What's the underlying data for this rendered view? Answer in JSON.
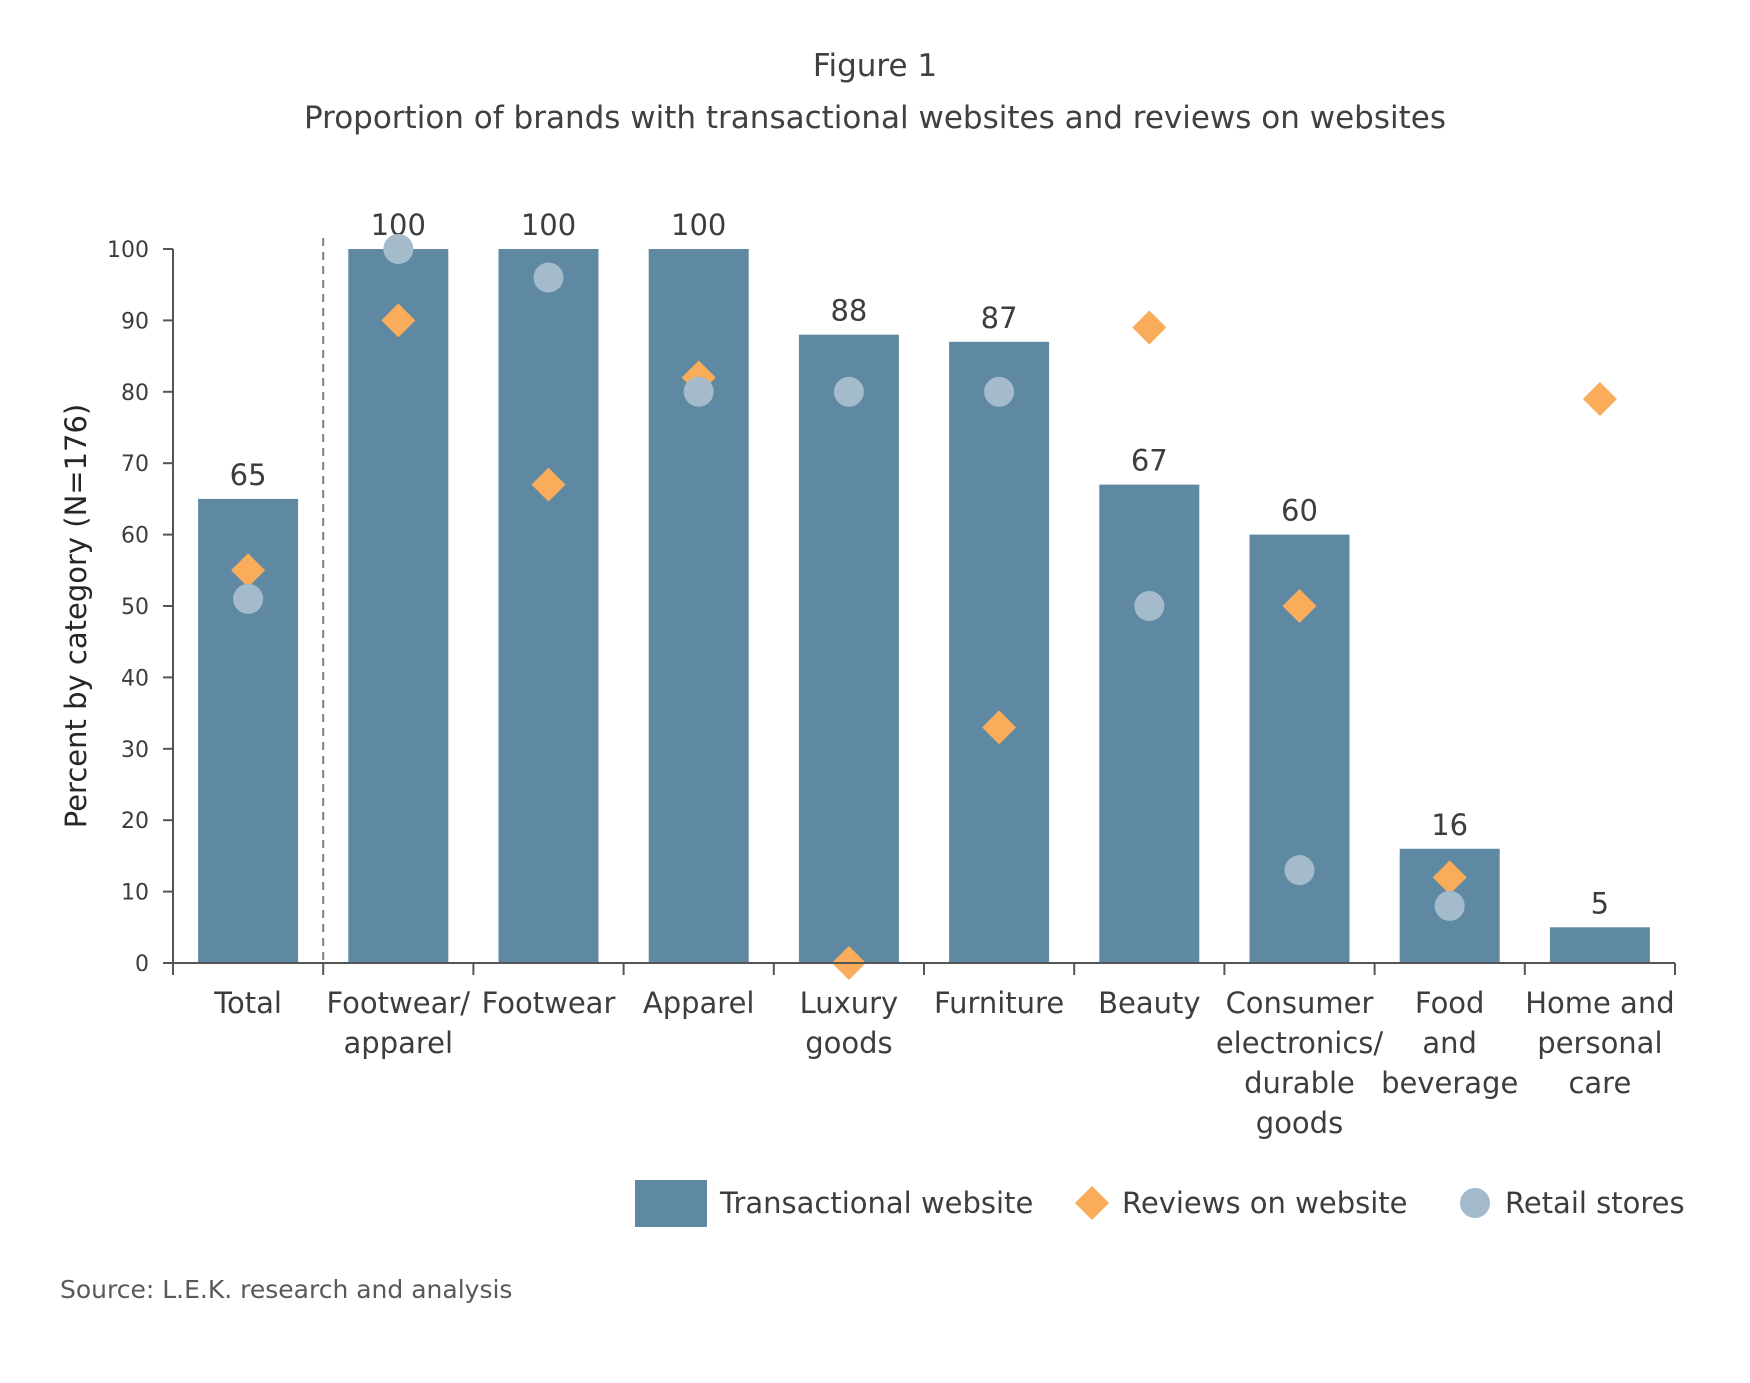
{
  "figure_label": "Figure 1",
  "title": "Proportion of brands with transactional websites and reviews on websites",
  "source": "Source: L.E.K. research and analysis",
  "colors": {
    "bar": "#5f89a3",
    "reviews": "#f9ac59",
    "retail": "#a4bbcb",
    "axis": "#555555",
    "divider": "#7f7f7f"
  },
  "chart_data": {
    "type": "bar",
    "ylabel": "Percent by category (N=176)",
    "ylim": [
      0,
      100
    ],
    "yticks": [
      0,
      10,
      20,
      30,
      40,
      50,
      60,
      70,
      80,
      90,
      100
    ],
    "divider_after_index": 0,
    "categories": [
      [
        "Total"
      ],
      [
        "Footwear/",
        "apparel"
      ],
      [
        "Footwear"
      ],
      [
        "Apparel"
      ],
      [
        "Luxury",
        "goods"
      ],
      [
        "Furniture"
      ],
      [
        "Beauty"
      ],
      [
        "Consumer",
        "electronics/",
        "durable",
        "goods"
      ],
      [
        "Food",
        "and",
        "beverage"
      ],
      [
        "Home and",
        "personal",
        "care"
      ]
    ],
    "series": [
      {
        "name": "Transactional website",
        "kind": "bar",
        "values": [
          65,
          100,
          100,
          100,
          88,
          87,
          67,
          60,
          16,
          5
        ],
        "labels": [
          "65",
          "100",
          "100",
          "100",
          "88",
          "87",
          "67",
          "60",
          "16",
          "5"
        ]
      },
      {
        "name": "Reviews on website",
        "kind": "diamond",
        "values": [
          55,
          90,
          67,
          82,
          0,
          33,
          89,
          50,
          12,
          79
        ]
      },
      {
        "name": "Retail stores",
        "kind": "circle",
        "values": [
          51,
          100,
          96,
          80,
          80,
          80,
          50,
          13,
          8,
          null
        ]
      }
    ],
    "legend_position": "bottom-right",
    "grid": false
  }
}
